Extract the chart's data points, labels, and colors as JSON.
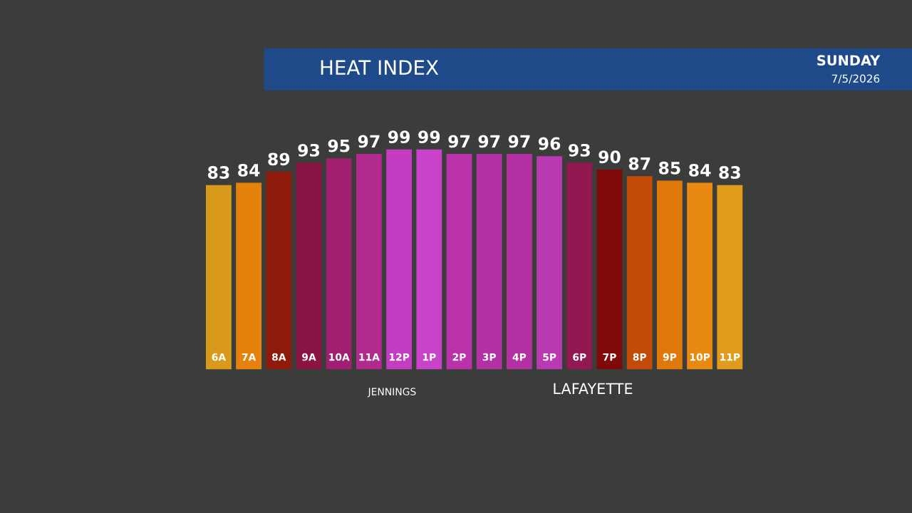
{
  "chart_data": {
    "type": "bar",
    "title": "HEAT INDEX",
    "subtitle": "SUNDAY",
    "annotations": [
      "7/5/2026",
      "JENNINGS",
      "LAFAYETTE"
    ],
    "categories": [
      "6A",
      "7A",
      "8A",
      "9A",
      "10A",
      "11A",
      "12P",
      "1P",
      "2P",
      "3P",
      "4P",
      "5P",
      "6P",
      "7P",
      "8P",
      "9P",
      "10P",
      "11P"
    ],
    "values": [
      83,
      84,
      89,
      93,
      95,
      97,
      99,
      99,
      97,
      97,
      97,
      96,
      93,
      90,
      87,
      85,
      84,
      83
    ],
    "colors": [
      "#d99a1c",
      "#e5820c",
      "#8e1a0c",
      "#8a1545",
      "#a11f70",
      "#b12b8c",
      "#c43cc2",
      "#c942ca",
      "#b932aa",
      "#b331a3",
      "#b331a3",
      "#b939b2",
      "#921852",
      "#800a0a",
      "#c24b0a",
      "#de780a",
      "#e88a12",
      "#e09c1a"
    ],
    "data_labels": true
  }
}
